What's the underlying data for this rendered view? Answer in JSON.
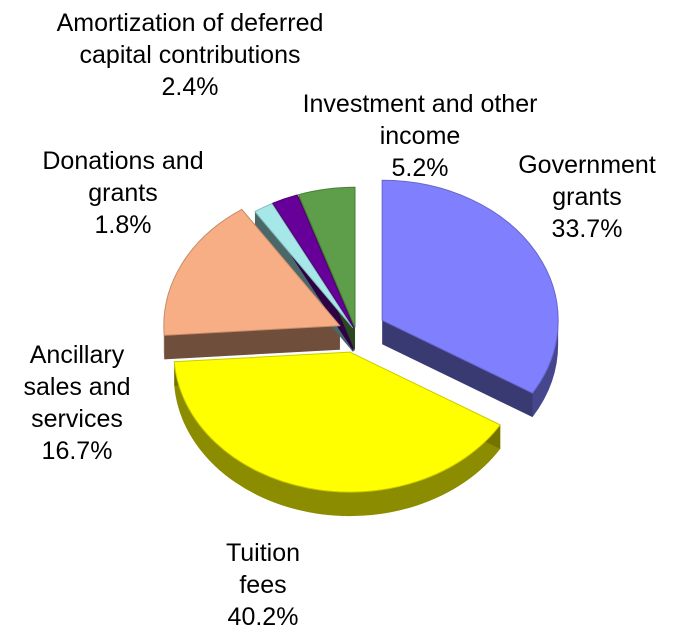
{
  "chart_data": {
    "type": "pie",
    "slices": [
      {
        "label_lines": [
          "Government",
          "grants"
        ],
        "pct": "33.7%",
        "value": 33.7,
        "color": "#8080FF"
      },
      {
        "label_lines": [
          "Tuition",
          "fees"
        ],
        "pct": "40.2%",
        "value": 40.2,
        "color": "#FFFF00"
      },
      {
        "label_lines": [
          "Ancillary",
          "sales and",
          "services"
        ],
        "pct": "16.7%",
        "value": 16.7,
        "color": "#F7AE84"
      },
      {
        "label_lines": [
          "Donations and",
          "grants"
        ],
        "pct": "1.8%",
        "value": 1.8,
        "color": "#A6E8E8"
      },
      {
        "label_lines": [
          "Amortization of deferred",
          "capital contributions"
        ],
        "pct": "2.4%",
        "value": 2.4,
        "color": "#660099"
      },
      {
        "label_lines": [
          "Investment and other",
          "income"
        ],
        "pct": "5.2%",
        "value": 5.2,
        "color": "#5E9E4A"
      }
    ]
  }
}
